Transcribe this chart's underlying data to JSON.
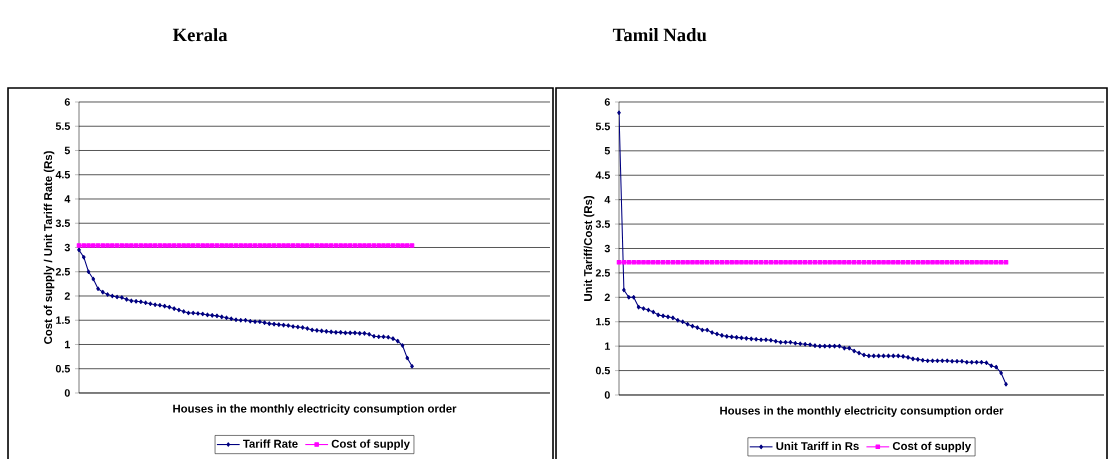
{
  "chart_data": [
    {
      "type": "line",
      "title": "Kerala",
      "xlabel": "Houses in the monthly electricity consumption order",
      "ylabel": "Cost of supply / Unit Tariff Rate (Rs)",
      "categories": [
        null,
        null,
        null,
        null,
        null,
        null,
        null,
        null,
        null,
        null,
        null,
        null,
        null,
        null,
        null,
        null,
        null,
        null,
        null,
        null,
        null,
        null,
        null,
        null,
        null,
        null,
        null,
        null,
        null,
        null,
        null,
        null,
        null,
        null,
        null,
        null,
        null,
        null,
        null,
        null,
        null,
        null,
        null,
        null,
        null,
        null,
        null,
        null,
        null,
        null,
        null,
        null,
        null,
        null,
        null,
        null,
        null,
        null,
        null,
        null,
        null,
        null,
        null,
        null,
        null,
        null,
        null,
        null,
        null,
        null,
        null,
        null,
        null,
        null,
        null,
        null,
        null,
        null,
        null,
        null,
        null,
        null,
        null,
        null,
        null,
        null,
        null,
        null,
        null,
        null,
        null,
        null,
        null,
        null,
        null,
        null,
        null,
        null,
        null,
        null
      ],
      "ylim": [
        0,
        6
      ],
      "yticks": [
        0,
        0.5,
        1,
        1.5,
        2,
        2.5,
        3,
        3.5,
        4,
        4.5,
        5,
        5.5,
        6
      ],
      "grid": "y",
      "legend": "bottom",
      "series": [
        {
          "name": "Tariff Rate",
          "color": "#000080",
          "marker": "diamond",
          "values": [
            2.95,
            2.8,
            2.5,
            2.35,
            2.15,
            2.08,
            2.03,
            2.0,
            1.98,
            1.97,
            1.93,
            1.9,
            1.89,
            1.88,
            1.86,
            1.84,
            1.82,
            1.81,
            1.79,
            1.77,
            1.74,
            1.71,
            1.68,
            1.65,
            1.65,
            1.64,
            1.63,
            1.61,
            1.6,
            1.59,
            1.57,
            1.55,
            1.53,
            1.51,
            1.5,
            1.5,
            1.48,
            1.47,
            1.47,
            1.45,
            1.43,
            1.42,
            1.41,
            1.4,
            1.39,
            1.37,
            1.36,
            1.35,
            1.33,
            1.3,
            1.29,
            1.28,
            1.27,
            1.26,
            1.25,
            1.25,
            1.24,
            1.24,
            1.24,
            1.23,
            1.23,
            1.21,
            1.17,
            1.16,
            1.16,
            1.15,
            1.12,
            1.07,
            0.98,
            0.72,
            0.55,
            null,
            null,
            null,
            null,
            null,
            null,
            null,
            null,
            null,
            null,
            null,
            null,
            null,
            null,
            null,
            null,
            null,
            null,
            null,
            null,
            null,
            null,
            null,
            null,
            null,
            null,
            null,
            null,
            null
          ]
        },
        {
          "name": "Cost of supply",
          "color": "#ff00ff",
          "marker": "square",
          "values": [
            3.04,
            3.04,
            3.04,
            3.04,
            3.04,
            3.04,
            3.04,
            3.04,
            3.04,
            3.04,
            3.04,
            3.04,
            3.04,
            3.04,
            3.04,
            3.04,
            3.04,
            3.04,
            3.04,
            3.04,
            3.04,
            3.04,
            3.04,
            3.04,
            3.04,
            3.04,
            3.04,
            3.04,
            3.04,
            3.04,
            3.04,
            3.04,
            3.04,
            3.04,
            3.04,
            3.04,
            3.04,
            3.04,
            3.04,
            3.04,
            3.04,
            3.04,
            3.04,
            3.04,
            3.04,
            3.04,
            3.04,
            3.04,
            3.04,
            3.04,
            3.04,
            3.04,
            3.04,
            3.04,
            3.04,
            3.04,
            3.04,
            3.04,
            3.04,
            3.04,
            3.04,
            3.04,
            3.04,
            3.04,
            3.04,
            3.04,
            3.04,
            3.04,
            3.04,
            3.04,
            3.04,
            null,
            null,
            null,
            null,
            null,
            null,
            null,
            null,
            null,
            null,
            null,
            null,
            null,
            null,
            null,
            null,
            null,
            null,
            null,
            null,
            null,
            null,
            null,
            null,
            null,
            null,
            null,
            null,
            null
          ]
        }
      ]
    },
    {
      "type": "line",
      "title": "Tamil Nadu",
      "xlabel": "Houses in the monthly electricity consumption order",
      "ylabel": "Unit Tariff/Cost (Rs)",
      "categories": [
        null,
        null,
        null,
        null,
        null,
        null,
        null,
        null,
        null,
        null,
        null,
        null,
        null,
        null,
        null,
        null,
        null,
        null,
        null,
        null,
        null,
        null,
        null,
        null,
        null,
        null,
        null,
        null,
        null,
        null,
        null,
        null,
        null,
        null,
        null,
        null,
        null,
        null,
        null,
        null,
        null,
        null,
        null,
        null,
        null,
        null,
        null,
        null,
        null,
        null,
        null,
        null,
        null,
        null,
        null,
        null,
        null,
        null,
        null,
        null,
        null,
        null,
        null,
        null,
        null,
        null,
        null,
        null,
        null,
        null,
        null,
        null,
        null,
        null,
        null,
        null,
        null,
        null,
        null,
        null,
        null,
        null,
        null,
        null,
        null,
        null,
        null,
        null,
        null,
        null,
        null,
        null,
        null,
        null,
        null,
        null,
        null,
        null,
        null,
        null
      ],
      "ylim": [
        0,
        6
      ],
      "yticks": [
        0,
        0.5,
        1,
        1.5,
        2,
        2.5,
        3,
        3.5,
        4,
        4.5,
        5,
        5.5,
        6
      ],
      "grid": "y",
      "legend": "bottom",
      "series": [
        {
          "name": "Unit Tariff in Rs",
          "color": "#000080",
          "marker": "diamond",
          "values": [
            5.78,
            2.15,
            2.0,
            2.0,
            1.8,
            1.77,
            1.74,
            1.7,
            1.64,
            1.62,
            1.6,
            1.58,
            1.53,
            1.5,
            1.45,
            1.41,
            1.38,
            1.33,
            1.33,
            1.28,
            1.25,
            1.22,
            1.2,
            1.19,
            1.18,
            1.17,
            1.16,
            1.15,
            1.14,
            1.13,
            1.13,
            1.12,
            1.1,
            1.08,
            1.08,
            1.08,
            1.06,
            1.05,
            1.04,
            1.03,
            1.01,
            1.0,
            1.0,
            1.0,
            1.0,
            1.0,
            0.96,
            0.96,
            0.9,
            0.86,
            0.82,
            0.8,
            0.8,
            0.8,
            0.8,
            0.8,
            0.8,
            0.8,
            0.79,
            0.77,
            0.74,
            0.73,
            0.71,
            0.7,
            0.7,
            0.7,
            0.7,
            0.7,
            0.69,
            0.69,
            0.69,
            0.67,
            0.67,
            0.67,
            0.67,
            0.66,
            0.6,
            0.57,
            0.45,
            0.22,
            null,
            null,
            null,
            null,
            null,
            null,
            null,
            null,
            null,
            null,
            null,
            null,
            null,
            null,
            null,
            null,
            null,
            null,
            null,
            null
          ]
        },
        {
          "name": "Cost of supply",
          "color": "#ff00ff",
          "marker": "square",
          "values": [
            2.72,
            2.72,
            2.72,
            2.72,
            2.72,
            2.72,
            2.72,
            2.72,
            2.72,
            2.72,
            2.72,
            2.72,
            2.72,
            2.72,
            2.72,
            2.72,
            2.72,
            2.72,
            2.72,
            2.72,
            2.72,
            2.72,
            2.72,
            2.72,
            2.72,
            2.72,
            2.72,
            2.72,
            2.72,
            2.72,
            2.72,
            2.72,
            2.72,
            2.72,
            2.72,
            2.72,
            2.72,
            2.72,
            2.72,
            2.72,
            2.72,
            2.72,
            2.72,
            2.72,
            2.72,
            2.72,
            2.72,
            2.72,
            2.72,
            2.72,
            2.72,
            2.72,
            2.72,
            2.72,
            2.72,
            2.72,
            2.72,
            2.72,
            2.72,
            2.72,
            2.72,
            2.72,
            2.72,
            2.72,
            2.72,
            2.72,
            2.72,
            2.72,
            2.72,
            2.72,
            2.72,
            2.72,
            2.72,
            2.72,
            2.72,
            2.72,
            2.72,
            2.72,
            2.72,
            2.72,
            null,
            null,
            null,
            null,
            null,
            null,
            null,
            null,
            null,
            null,
            null,
            null,
            null,
            null,
            null,
            null,
            null,
            null,
            null,
            null
          ]
        }
      ]
    }
  ]
}
